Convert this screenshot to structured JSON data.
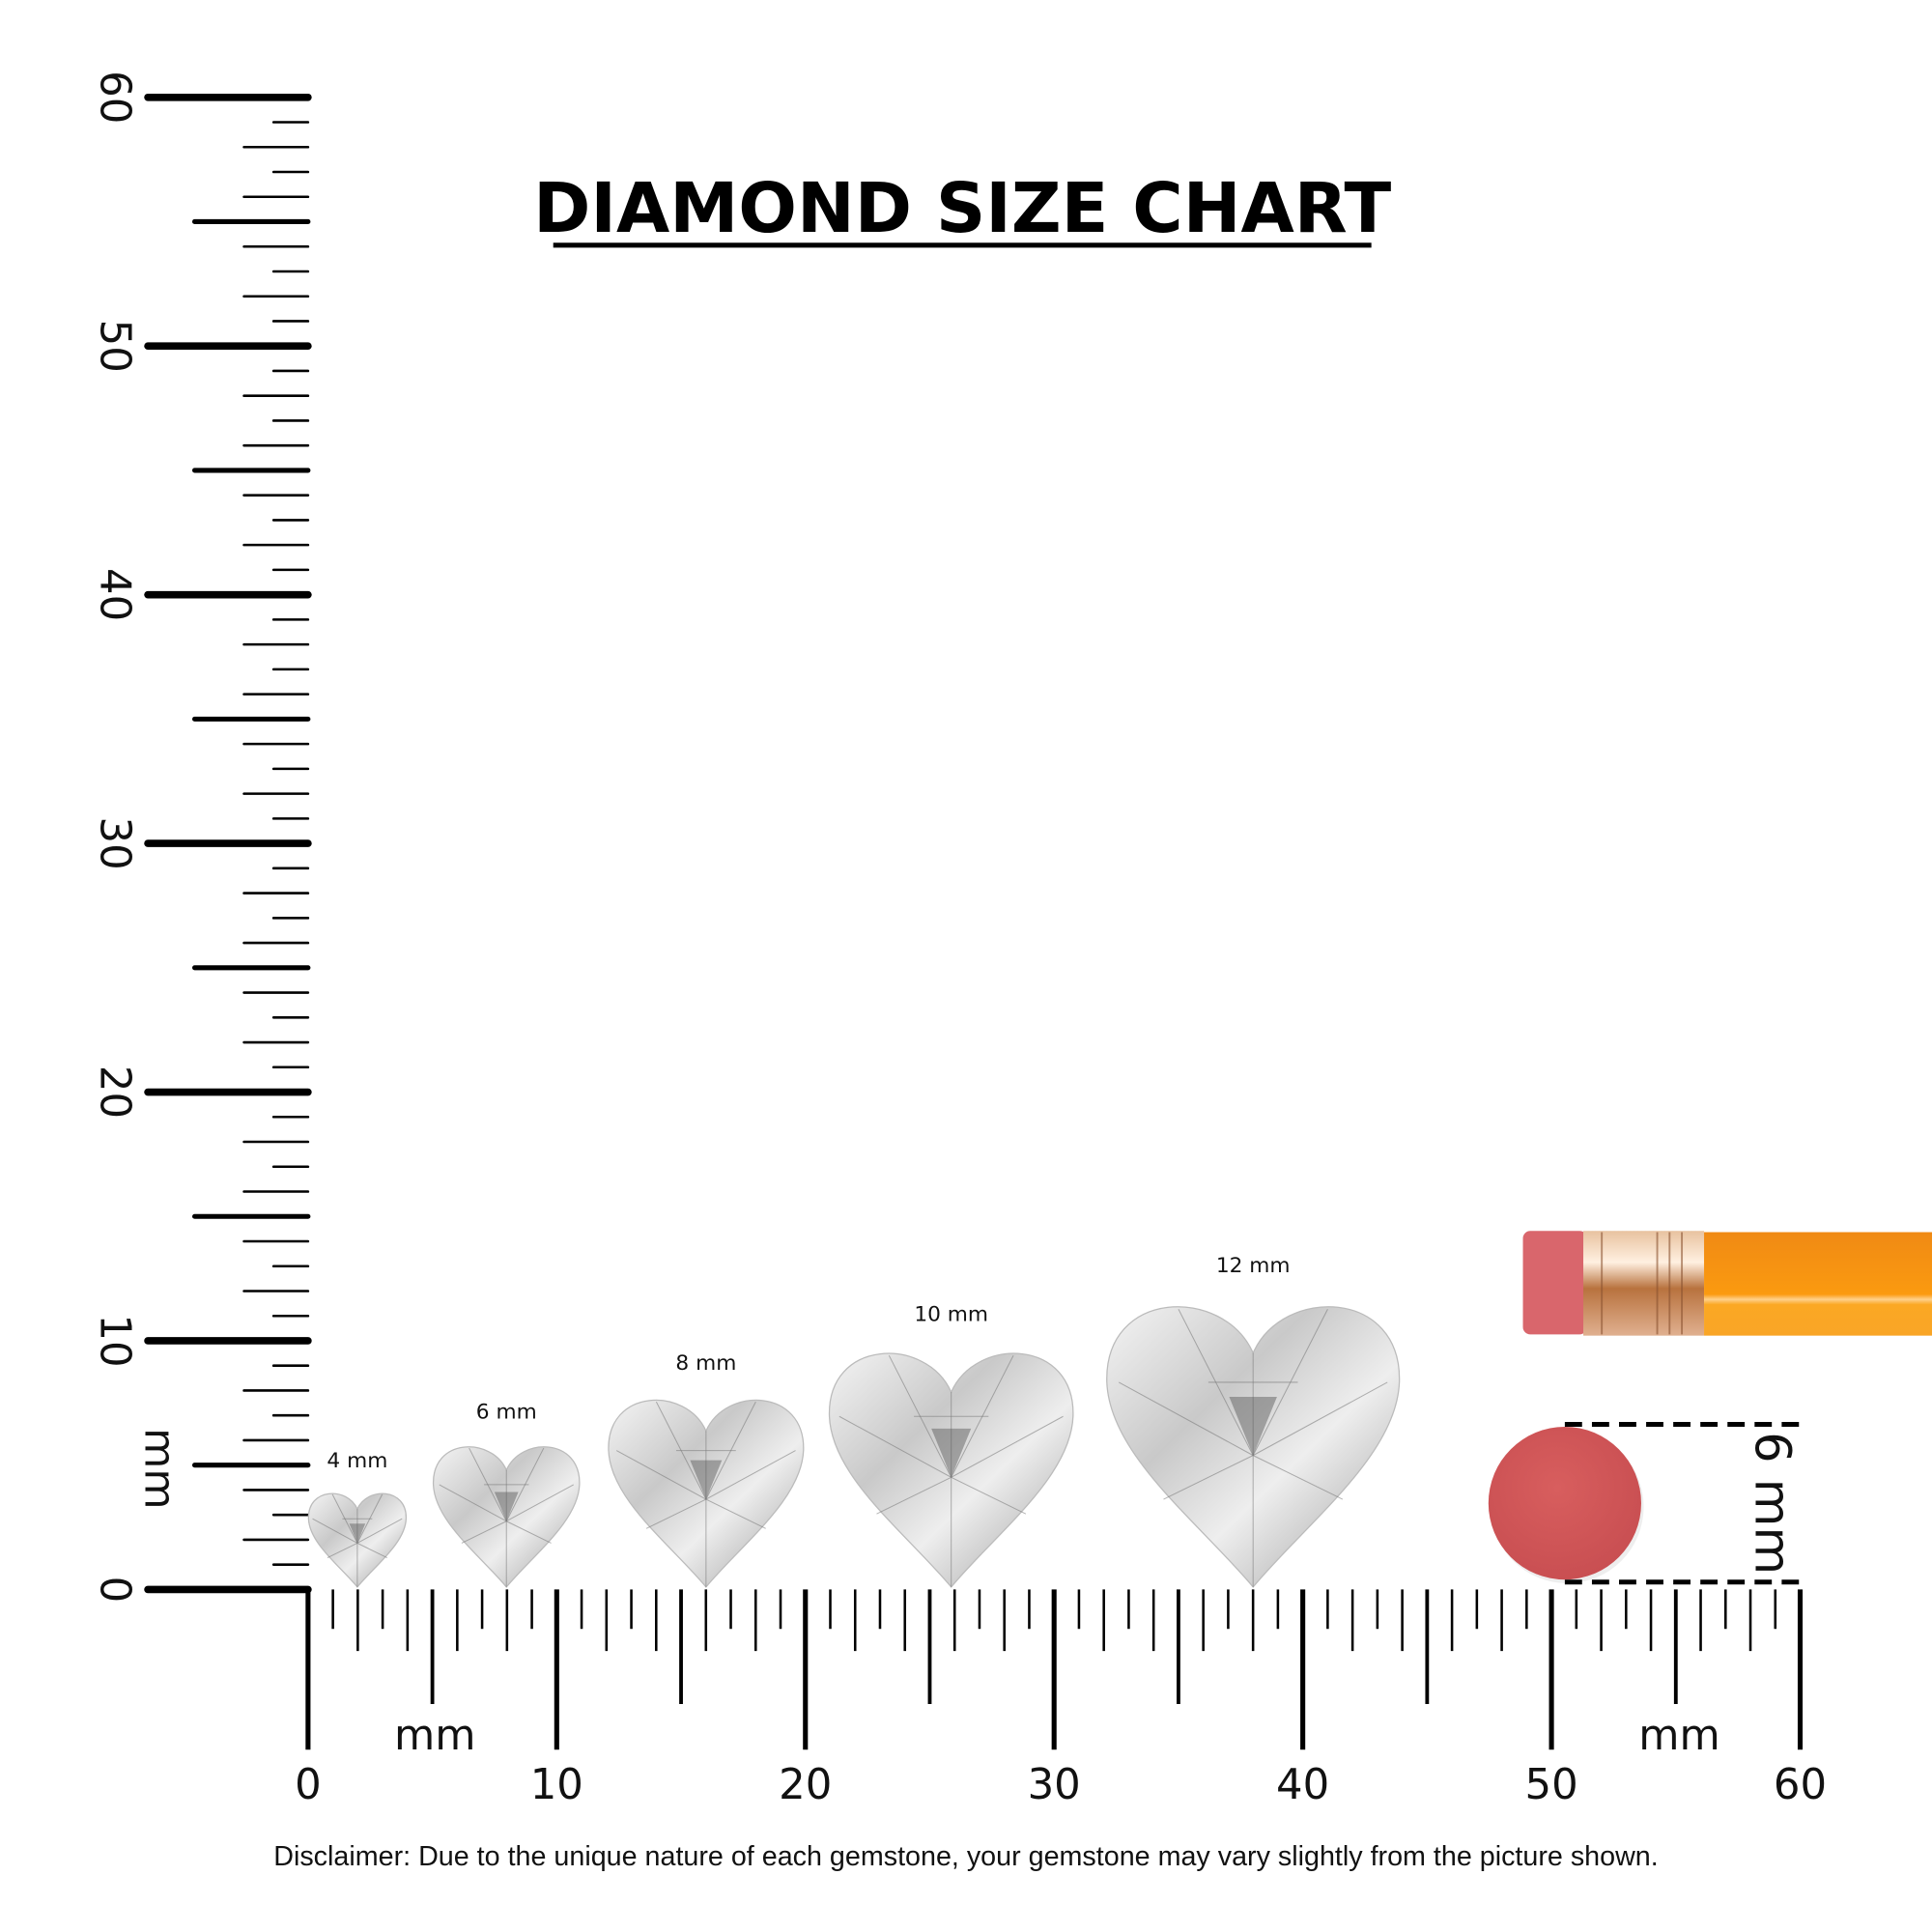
{
  "title": "DIAMOND SIZE CHART",
  "ruler": {
    "unit_label": "mm",
    "range_mm": [
      0,
      60
    ],
    "tick_labels": [
      "0",
      "10",
      "20",
      "30",
      "40",
      "50",
      "60"
    ]
  },
  "diamonds": [
    {
      "label": "4 mm",
      "size_mm": 4
    },
    {
      "label": "6 mm",
      "size_mm": 6
    },
    {
      "label": "8 mm",
      "size_mm": 8
    },
    {
      "label": "10 mm",
      "size_mm": 10
    },
    {
      "label": "12 mm",
      "size_mm": 12
    }
  ],
  "eraser_reference": {
    "label": "6 mm",
    "size_mm": 6,
    "color": "#d45a5a"
  },
  "pencil": {
    "eraser_color": "#d9666c",
    "ferrule_color": "#d9a27a",
    "body_color": "#f7931a"
  },
  "disclaimer": "Disclaimer: Due to the unique nature of each gemstone, your gemstone may vary slightly from the picture shown."
}
